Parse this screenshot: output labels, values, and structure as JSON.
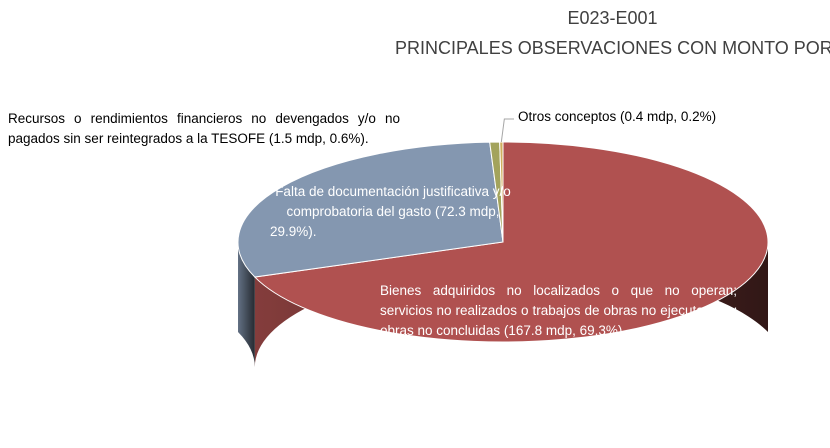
{
  "chart_data": {
    "type": "pie3d",
    "title": "E023-E001",
    "subtitle": "PRINCIPALES OBSERVACIONES CON MONTO POR ACLARAR",
    "categories": [
      "Bienes adquiridos no localizados o que no operan; servicios no realizados o trabajos de obras no ejecutados u obras no concluidas (167.8 mdp, 69.3%).",
      "Falta de documentación justificativa y/o comprobatoria del gasto (72.3 mdp, 29.9%).",
      "Recursos o rendimientos financieros no devengados y/o no pagados sin ser reintegrados a la TESOFE  (1.5 mdp, 0.6%).",
      "Otros conceptos (0.4 mdp, 0.2%)"
    ],
    "values": [
      69.3,
      29.9,
      0.6,
      0.2
    ],
    "colors": [
      "#b05150",
      "#8497b0",
      "#a3a35c",
      "#cfae5e"
    ]
  }
}
